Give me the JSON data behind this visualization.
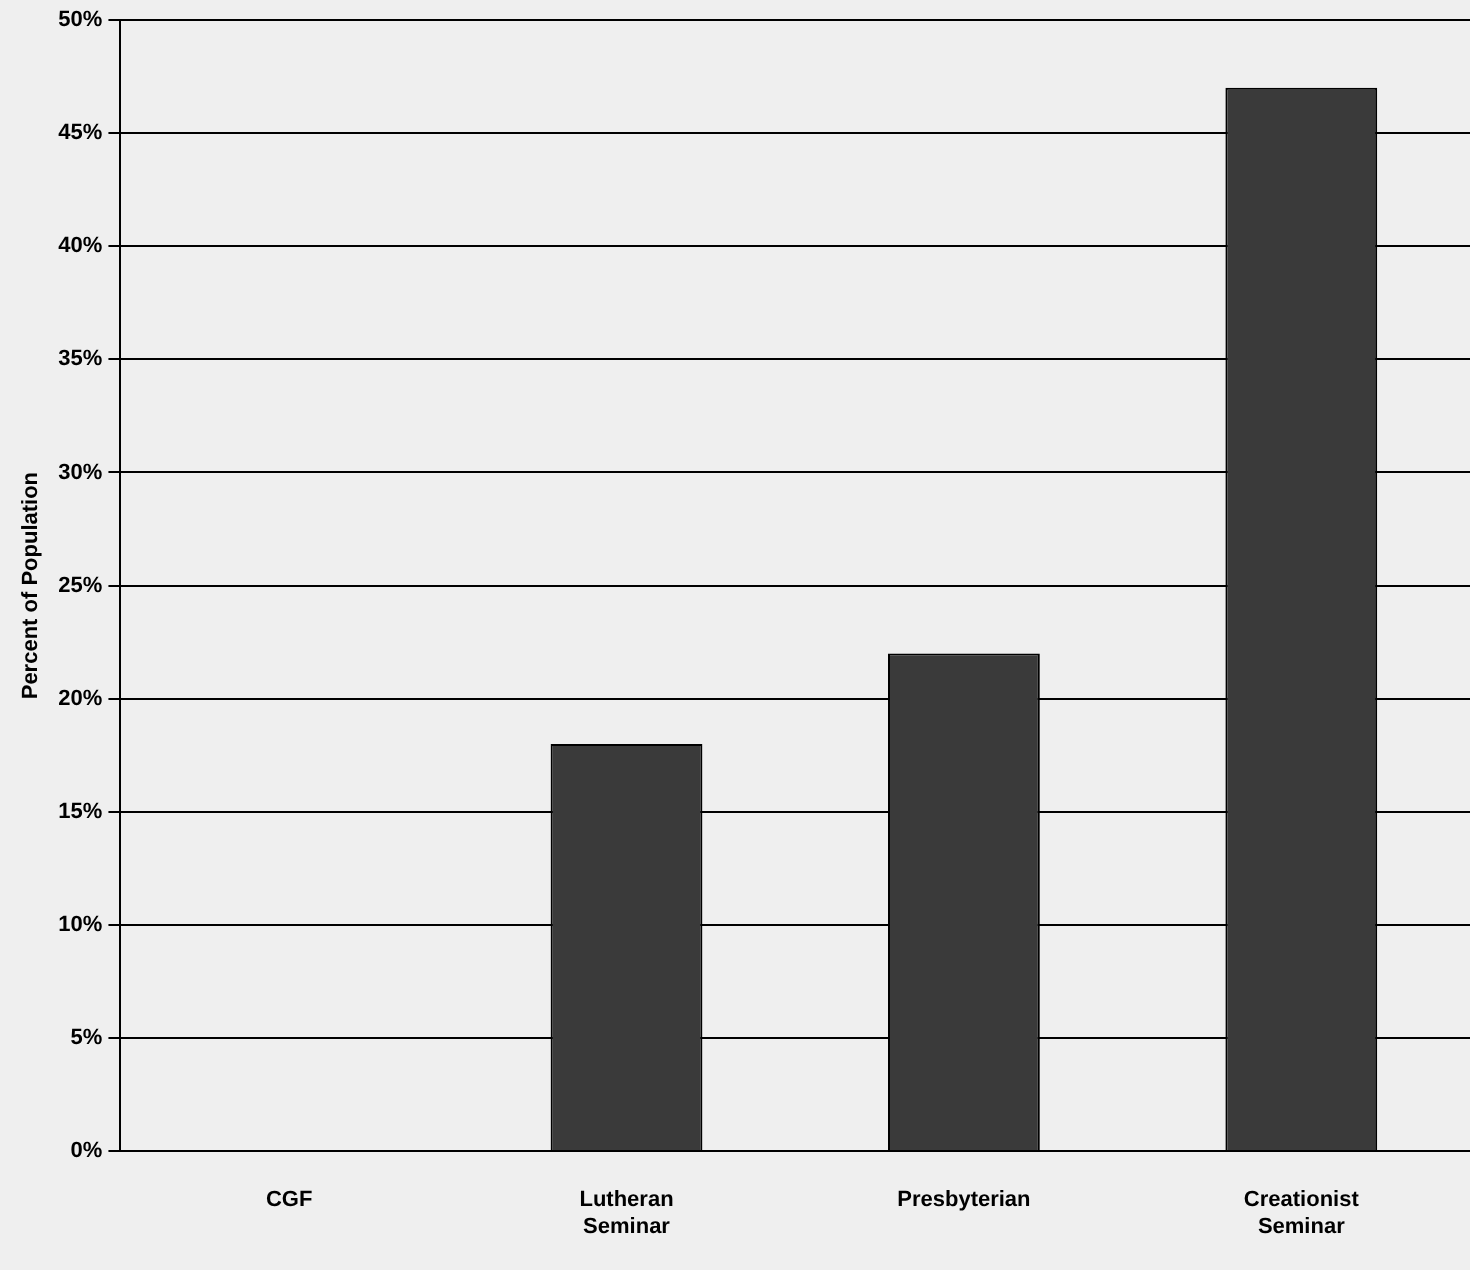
{
  "chart_data": {
    "type": "bar",
    "ylabel": "Percent of Population",
    "categories": [
      "CGF",
      "Lutheran Seminar",
      "Presbyterian",
      "Creationist Seminar"
    ],
    "values": [
      0,
      18,
      22,
      47
    ],
    "color": "#3a3a3a",
    "ylim": [
      0,
      50
    ],
    "yticks": [
      {
        "value": 0,
        "label": "0%"
      },
      {
        "value": 5,
        "label": "5%"
      },
      {
        "value": 10,
        "label": "10%"
      },
      {
        "value": 15,
        "label": "15%"
      },
      {
        "value": 20,
        "label": "20%"
      },
      {
        "value": 25,
        "label": "25%"
      },
      {
        "value": 30,
        "label": "30%"
      },
      {
        "value": 35,
        "label": "35%"
      },
      {
        "value": 40,
        "label": "40%"
      },
      {
        "value": 45,
        "label": "45%"
      },
      {
        "value": 50,
        "label": "50%"
      }
    ],
    "grid": "y"
  }
}
